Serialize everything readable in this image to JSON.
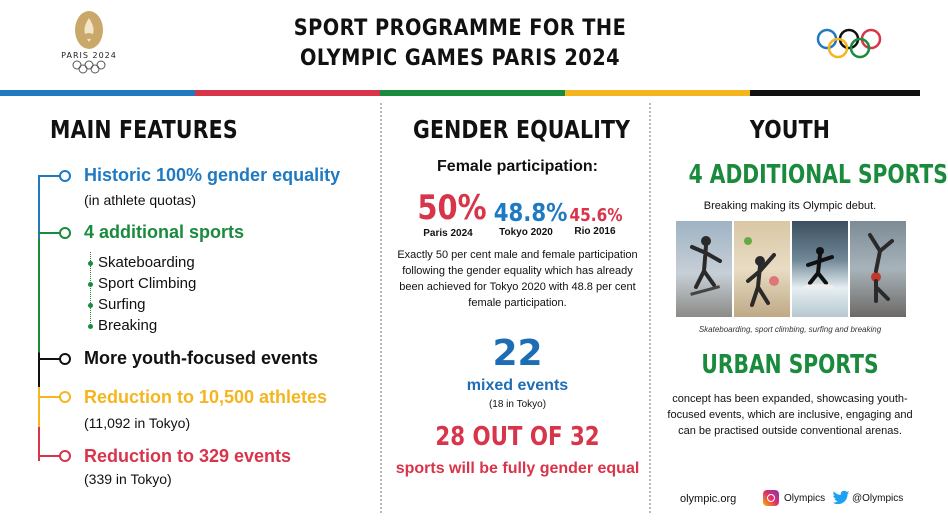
{
  "header": {
    "logo_text": "PARIS 2024",
    "title_line1": "SPORT PROGRAMME FOR THE",
    "title_line2": "OLYMPIC GAMES PARIS 2024"
  },
  "colors": {
    "blue": "#1f7ac2",
    "red": "#d8344a",
    "green": "#1a8a3d",
    "yellow": "#f4b51f",
    "black": "#111111",
    "gold": "#c9a86a"
  },
  "main_features": {
    "title": "MAIN FEATURES",
    "items": [
      {
        "title": "Historic 100% gender equality",
        "sub": "(in athlete quotas)",
        "color": "#1f7ac2"
      },
      {
        "title": "4 additional sports",
        "sub": "",
        "color": "#1a8a3d"
      },
      {
        "title": "More youth-focused events",
        "sub": "",
        "color": "#111111"
      },
      {
        "title": "Reduction to 10,500 athletes",
        "sub": "(11,092 in Tokyo)",
        "color": "#f4b51f"
      },
      {
        "title": "Reduction to 329 events",
        "sub": "(339 in Tokyo)",
        "color": "#d8344a"
      }
    ],
    "sports": [
      "Skateboarding",
      "Sport Climbing",
      "Surfing",
      "Breaking"
    ]
  },
  "gender": {
    "title": "GENDER EQUALITY",
    "female_label": "Female participation:",
    "stats": [
      {
        "value": "50%",
        "label": "Paris 2024",
        "color": "#d8344a"
      },
      {
        "value": "48.8%",
        "label": "Tokyo 2020",
        "color": "#1f7ac2"
      },
      {
        "value": "45.6%",
        "label": "Rio 2016",
        "color": "#d8344a"
      }
    ],
    "paragraph": "Exactly 50 per cent male and female participation following the gender equality which has already been achieved for Tokyo 2020 with 48.8 per cent female participation.",
    "mixed_number": "22",
    "mixed_label": "mixed events",
    "mixed_note": "(18 in Tokyo)",
    "out_of": "28 OUT OF 32",
    "out_label": "sports will be fully gender equal"
  },
  "youth": {
    "title": "YOUTH",
    "additional": "4 ADDITIONAL SPORTS",
    "breaking_debut": "Breaking making its Olympic debut.",
    "caption": "Skateboarding, sport climbing, surfing and breaking",
    "urban_title": "URBAN SPORTS",
    "urban_paragraph": "concept has been expanded, showcasing youth-focused events, which are inclusive, engaging and can be practised outside conventional arenas."
  },
  "footer": {
    "site": "olympic.org",
    "instagram": "Olympics",
    "twitter": "@Olympics"
  }
}
